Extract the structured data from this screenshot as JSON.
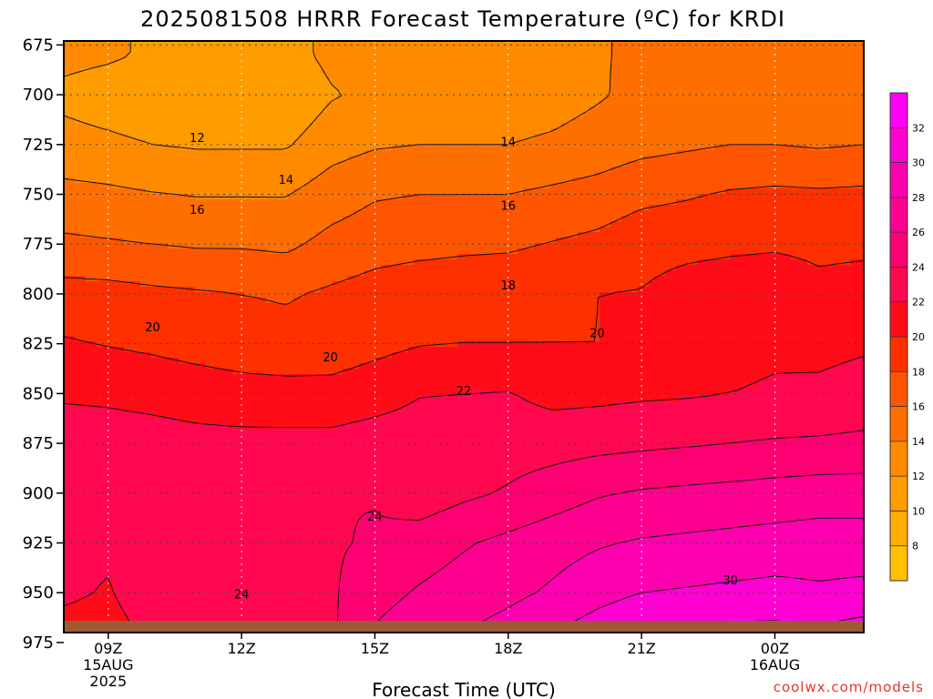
{
  "chart_data": {
    "type": "heatmap",
    "title": "2025081508 HRRR Forecast Temperature (ºC) for KRDI",
    "xlabel": "Forecast Time (UTC)",
    "ylabel": "",
    "credit": "coolwx.com/models",
    "x_tick_labels": [
      [
        "09Z",
        "15AUG",
        "2025"
      ],
      [
        "12Z"
      ],
      [
        "15Z"
      ],
      [
        "18Z"
      ],
      [
        "21Z"
      ],
      [
        "00Z",
        "16AUG"
      ]
    ],
    "x_hours": [
      9,
      12,
      15,
      18,
      21,
      24
    ],
    "xlim": [
      8.0,
      26.0
    ],
    "y_ticks": [
      675,
      700,
      725,
      750,
      775,
      800,
      825,
      850,
      875,
      900,
      925,
      950,
      975
    ],
    "y_tick_labels": [
      "675",
      "700",
      "725",
      "750",
      "775",
      "800",
      "825",
      "850",
      "875",
      "900",
      "925",
      "950",
      "975"
    ],
    "ylim": [
      970,
      673
    ],
    "y_axis_unit": "hPa",
    "grid": true,
    "colorbar": {
      "levels": [
        6,
        8,
        10,
        12,
        14,
        16,
        18,
        20,
        22,
        24,
        26,
        28,
        30,
        32,
        34
      ],
      "tick_labels": [
        "8",
        "10",
        "12",
        "14",
        "16",
        "18",
        "20",
        "22",
        "24",
        "26",
        "28",
        "30",
        "32"
      ],
      "colors": [
        "#ffc000",
        "#ffae00",
        "#ff9c00",
        "#ff8a00",
        "#ff6f00",
        "#ff5400",
        "#ff3000",
        "#ff0c18",
        "#ff0850",
        "#ff0072",
        "#ff0090",
        "#ff00b0",
        "#ff00d2",
        "#ff00f6"
      ]
    },
    "contour_labels": [
      {
        "value": "12",
        "hour": 11.0,
        "p": 722
      },
      {
        "value": "14",
        "hour": 13.0,
        "p": 743
      },
      {
        "value": "14",
        "hour": 18.0,
        "p": 724
      },
      {
        "value": "16",
        "hour": 11.0,
        "p": 758
      },
      {
        "value": "16",
        "hour": 18.0,
        "p": 756
      },
      {
        "value": "18",
        "hour": 18.0,
        "p": 796
      },
      {
        "value": "20",
        "hour": 10.0,
        "p": 817
      },
      {
        "value": "20",
        "hour": 14.0,
        "p": 832
      },
      {
        "value": "20",
        "hour": 20.0,
        "p": 820
      },
      {
        "value": "22",
        "hour": 17.0,
        "p": 849
      },
      {
        "value": "24",
        "hour": 12.0,
        "p": 951
      },
      {
        "value": "24",
        "hour": 15.0,
        "p": 912
      },
      {
        "value": "30",
        "hour": 23.0,
        "p": 944
      }
    ],
    "isotherm_profiles": {
      "hours": [
        8,
        9,
        10,
        11,
        12,
        13,
        14,
        15,
        16,
        17,
        18,
        19,
        20,
        21,
        22,
        23,
        24,
        25,
        26
      ],
      "pressures_hPa": [
        680,
        700,
        725,
        750,
        775,
        800,
        825,
        850,
        875,
        900,
        925,
        950,
        970
      ],
      "temperature_C": [
        [
          12.6,
          12.3,
          11.7,
          11.2,
          11.0,
          11.2,
          12.5,
          13.2,
          13.4,
          13.5,
          13.6,
          13.7,
          13.9,
          14.2,
          14.3,
          14.4,
          14.4,
          14.2,
          14.4
        ],
        [
          11.5,
          11.0,
          10.6,
          10.2,
          10.0,
          10.3,
          11.8,
          12.5,
          12.7,
          12.8,
          12.9,
          13.2,
          13.8,
          14.5,
          14.6,
          14.7,
          14.7,
          14.6,
          14.8
        ],
        [
          12.7,
          12.4,
          12.0,
          11.8,
          11.8,
          11.8,
          13.2,
          13.8,
          14.0,
          14.0,
          14.0,
          14.3,
          14.8,
          15.4,
          15.7,
          16.0,
          16.0,
          15.8,
          16.0
        ],
        [
          14.6,
          14.4,
          14.1,
          13.9,
          13.9,
          13.9,
          15.0,
          15.8,
          16.0,
          16.0,
          16.0,
          16.4,
          16.8,
          17.5,
          17.8,
          18.2,
          18.4,
          18.3,
          18.4
        ],
        [
          16.4,
          16.2,
          16.0,
          15.8,
          15.8,
          15.6,
          16.6,
          17.2,
          17.4,
          17.6,
          17.7,
          18.1,
          18.5,
          19.2,
          19.4,
          19.6,
          19.7,
          19.5,
          19.5
        ],
        [
          18.8,
          18.7,
          18.4,
          18.2,
          18.0,
          17.8,
          18.3,
          18.8,
          19.2,
          19.3,
          19.4,
          19.7,
          20.0,
          20.1,
          20.9,
          21.2,
          21.5,
          20.6,
          21.0
        ],
        [
          20.2,
          19.9,
          19.6,
          19.2,
          18.9,
          18.7,
          18.8,
          19.4,
          19.9,
          20.0,
          20.0,
          20.0,
          20.0,
          20.3,
          21.3,
          21.5,
          21.7,
          21.6,
          21.8
        ],
        [
          21.7,
          21.6,
          21.4,
          21.1,
          20.8,
          20.7,
          20.7,
          21.2,
          21.9,
          22.0,
          22.1,
          21.4,
          21.5,
          21.7,
          21.8,
          22.0,
          22.2,
          22.3,
          22.6
        ],
        [
          23.2,
          23.0,
          22.8,
          22.6,
          22.6,
          22.6,
          22.6,
          22.9,
          23.0,
          23.1,
          23.1,
          23.2,
          23.4,
          23.6,
          23.8,
          24.0,
          24.2,
          24.3,
          24.5
        ],
        [
          22.8,
          23.7,
          23.4,
          22.9,
          23.8,
          23.9,
          24.0,
          23.9,
          22.8,
          23.6,
          24.2,
          25.0,
          25.8,
          26.2,
          26.4,
          26.6,
          26.8,
          27.0,
          27.0
        ],
        [
          22.8,
          22.4,
          23.1,
          23.3,
          23.5,
          23.7,
          23.8,
          24.2,
          25.0,
          25.8,
          26.5,
          27.2,
          27.8,
          28.2,
          28.4,
          28.6,
          28.8,
          29.0,
          29.0
        ],
        [
          22.4,
          21.8,
          23.5,
          23.8,
          23.9,
          23.9,
          23.7,
          25.3,
          26.2,
          26.9,
          27.5,
          28.3,
          29.3,
          30.0,
          30.2,
          30.4,
          30.6,
          30.3,
          30.5
        ],
        [
          21.2,
          21.0,
          22.6,
          22.8,
          23.0,
          23.7,
          23.6,
          26.2,
          27.2,
          28.0,
          28.8,
          30.0,
          31.0,
          32.0,
          32.3,
          32.6,
          32.6,
          32.4,
          33.0
        ]
      ]
    },
    "surface_color": "#9e5a32"
  }
}
